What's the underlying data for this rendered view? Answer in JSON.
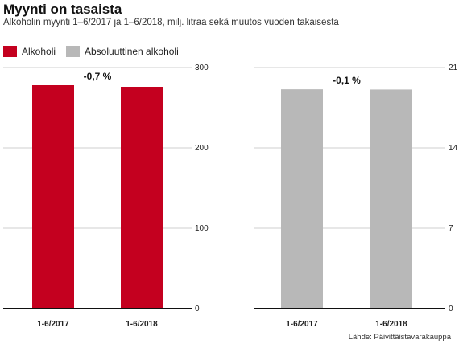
{
  "title": "Myynti on tasaista",
  "subtitle": "Alkoholin myynti 1–6/2017 ja 1–6/2018, milj. litraa sekä muutos vuoden takaisesta",
  "source": "Lähde: Päivittäistavarakauppa",
  "legend": [
    {
      "label": "Alkoholi",
      "color": "#c4001f"
    },
    {
      "label": "Absoluuttinen alkoholi",
      "color": "#b8b8b8"
    }
  ],
  "chart_data": [
    {
      "type": "bar",
      "series_name": "Alkoholi",
      "color": "#c4001f",
      "categories": [
        "1-6/2017",
        "1-6/2018"
      ],
      "values": [
        278,
        276
      ],
      "ylim": [
        0,
        300
      ],
      "yticks": [
        "0",
        "100",
        "200",
        "300"
      ],
      "change_label": "-0,7 %"
    },
    {
      "type": "bar",
      "series_name": "Absoluuttinen alkoholi",
      "color": "#b8b8b8",
      "categories": [
        "1-6/2017",
        "1-6/2018"
      ],
      "values": [
        19.1,
        19.08
      ],
      "ylim": [
        0,
        21
      ],
      "yticks": [
        "0",
        "7",
        "14",
        "21"
      ],
      "change_label": "-0,1 %"
    }
  ]
}
